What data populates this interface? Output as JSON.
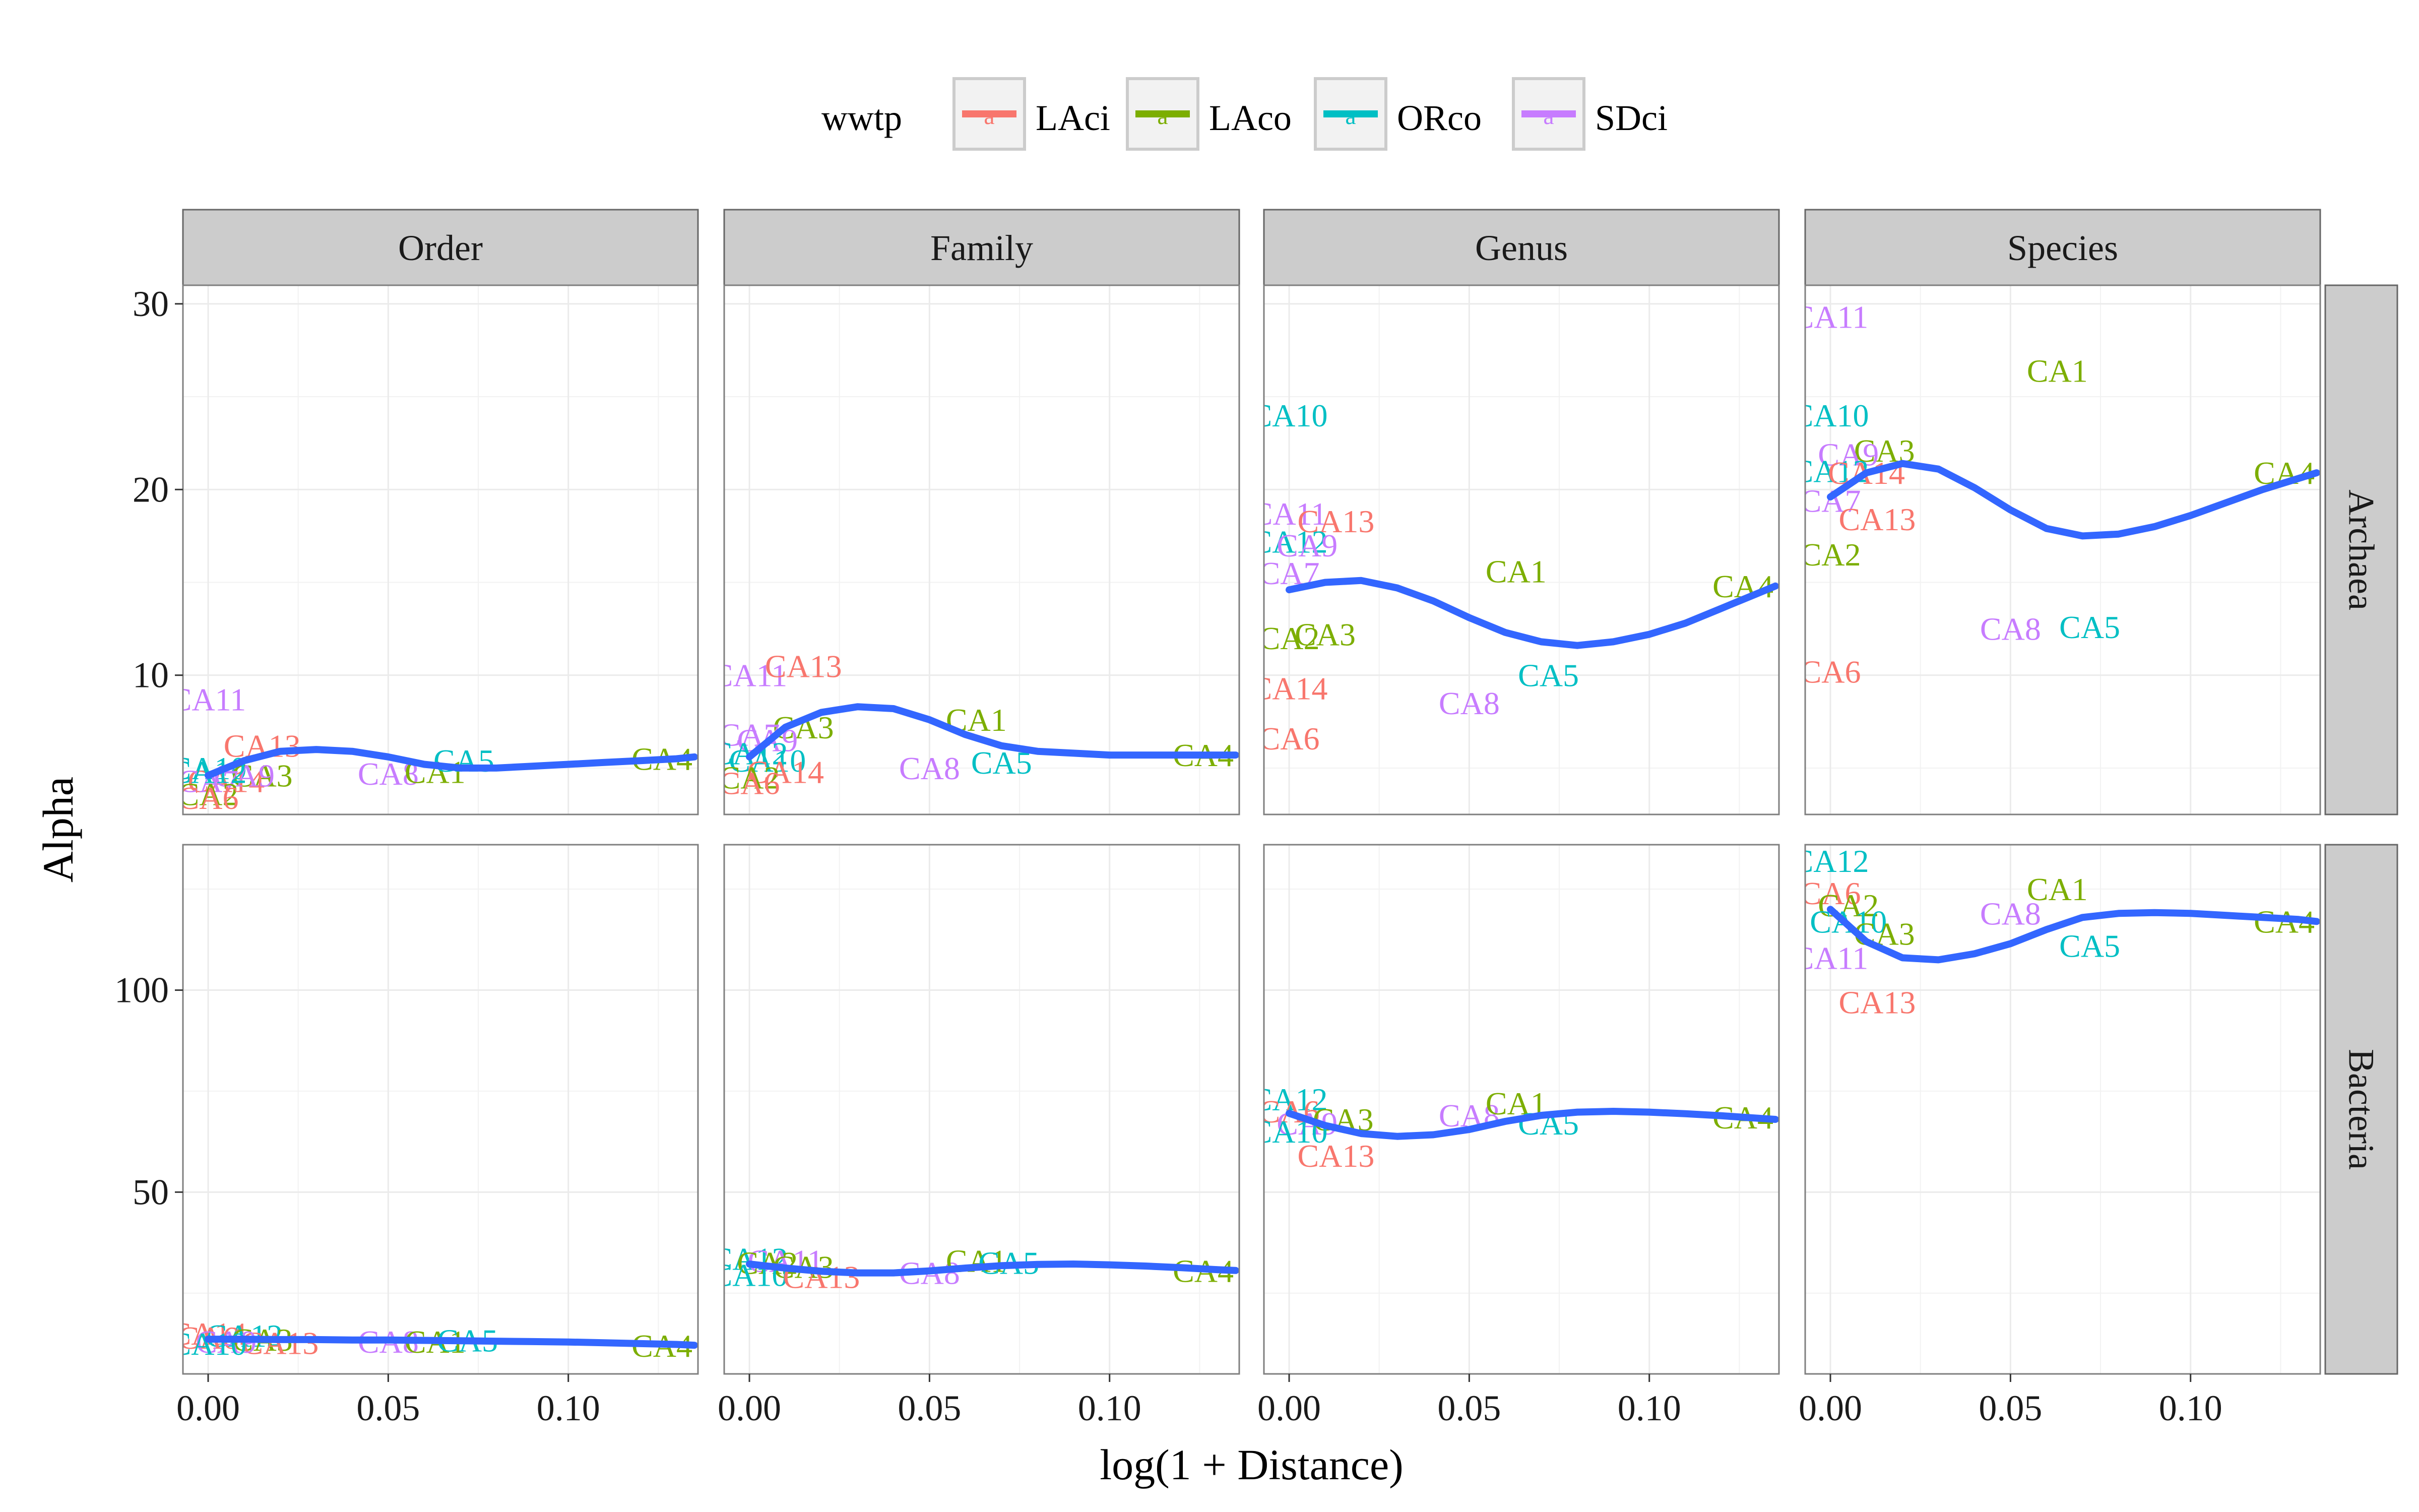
{
  "chart_data": {
    "type": "scatter",
    "xlabel": "log(1 + Distance)",
    "ylabel": "Alpha",
    "legend": {
      "title": "wwtp",
      "position": "top",
      "key_glyph": "a",
      "entries": [
        {
          "name": "LAci",
          "color": "#F8766D"
        },
        {
          "name": "LAco",
          "color": "#7CAE00"
        },
        {
          "name": "ORco",
          "color": "#00BFC4"
        },
        {
          "name": "SDci",
          "color": "#C77CFF"
        }
      ]
    },
    "smooth_color": "#3366FF",
    "grid": true,
    "columns": [
      "Order",
      "Family",
      "Genus",
      "Species"
    ],
    "rows": [
      "Archaea",
      "Bacteria"
    ],
    "xlim": [
      -0.007,
      0.136
    ],
    "x_ticks": [
      0.0,
      0.05,
      0.1
    ],
    "x_tick_labels": [
      "0.00",
      "0.05",
      "0.10"
    ],
    "row_scales": {
      "Archaea": {
        "ylim": [
          2.5,
          31
        ],
        "ticks": [
          10,
          20,
          30
        ],
        "tick_labels": [
          "10",
          "20",
          "30"
        ]
      },
      "Bacteria": {
        "ylim": [
          5,
          136
        ],
        "ticks": [
          50,
          100
        ],
        "tick_labels": [
          "50",
          "100"
        ]
      }
    },
    "panels": [
      {
        "row": "Archaea",
        "col": "Order",
        "points": [
          {
            "label": "CA11",
            "x": 0.0,
            "y": 8.7,
            "group": "SDci"
          },
          {
            "label": "CA13",
            "x": 0.015,
            "y": 6.2,
            "group": "LAci"
          },
          {
            "label": "CA10",
            "x": 0.0,
            "y": 5.0,
            "group": "ORco"
          },
          {
            "label": "CA3",
            "x": 0.015,
            "y": 4.6,
            "group": "LAco"
          },
          {
            "label": "CA14",
            "x": 0.005,
            "y": 4.3,
            "group": "LAci"
          },
          {
            "label": "CA9",
            "x": 0.01,
            "y": 4.6,
            "group": "SDci"
          },
          {
            "label": "CA7",
            "x": 0.0,
            "y": 4.3,
            "group": "SDci"
          },
          {
            "label": "CA12",
            "x": 0.0,
            "y": 4.8,
            "group": "ORco"
          },
          {
            "label": "CA2",
            "x": 0.0,
            "y": 3.6,
            "group": "LAco"
          },
          {
            "label": "CA6",
            "x": 0.0,
            "y": 3.4,
            "group": "LAci"
          },
          {
            "label": "CA8",
            "x": 0.05,
            "y": 4.7,
            "group": "SDci"
          },
          {
            "label": "CA1",
            "x": 0.063,
            "y": 4.8,
            "group": "LAco"
          },
          {
            "label": "CA5",
            "x": 0.071,
            "y": 5.4,
            "group": "ORco"
          },
          {
            "label": "CA4",
            "x": 0.126,
            "y": 5.5,
            "group": "LAco"
          }
        ],
        "smooth": {
          "x": [
            0.0,
            0.01,
            0.02,
            0.03,
            0.04,
            0.05,
            0.06,
            0.07,
            0.08,
            0.09,
            0.1,
            0.11,
            0.12,
            0.13,
            0.135
          ],
          "y": [
            4.6,
            5.4,
            5.9,
            6.0,
            5.9,
            5.6,
            5.2,
            5.0,
            5.0,
            5.1,
            5.2,
            5.3,
            5.4,
            5.5,
            5.6
          ]
        }
      },
      {
        "row": "Archaea",
        "col": "Family",
        "points": [
          {
            "label": "CA11",
            "x": 0.0,
            "y": 10.0,
            "group": "SDci"
          },
          {
            "label": "CA13",
            "x": 0.015,
            "y": 10.5,
            "group": "LAci"
          },
          {
            "label": "CA3",
            "x": 0.015,
            "y": 7.2,
            "group": "LAco"
          },
          {
            "label": "CA7",
            "x": 0.0,
            "y": 6.8,
            "group": "SDci"
          },
          {
            "label": "CA9",
            "x": 0.005,
            "y": 6.5,
            "group": "SDci"
          },
          {
            "label": "CA12",
            "x": 0.0,
            "y": 5.8,
            "group": "ORco"
          },
          {
            "label": "CA10",
            "x": 0.005,
            "y": 5.4,
            "group": "ORco"
          },
          {
            "label": "CA14",
            "x": 0.01,
            "y": 4.8,
            "group": "LAci"
          },
          {
            "label": "CA2",
            "x": 0.0,
            "y": 4.5,
            "group": "LAco"
          },
          {
            "label": "CA6",
            "x": 0.0,
            "y": 4.2,
            "group": "LAci"
          },
          {
            "label": "CA8",
            "x": 0.05,
            "y": 5.0,
            "group": "SDci"
          },
          {
            "label": "CA1",
            "x": 0.063,
            "y": 7.6,
            "group": "LAco"
          },
          {
            "label": "CA5",
            "x": 0.07,
            "y": 5.3,
            "group": "ORco"
          },
          {
            "label": "CA4",
            "x": 0.126,
            "y": 5.7,
            "group": "LAco"
          }
        ],
        "smooth": {
          "x": [
            0.0,
            0.01,
            0.02,
            0.03,
            0.04,
            0.05,
            0.06,
            0.07,
            0.08,
            0.09,
            0.1,
            0.11,
            0.12,
            0.13,
            0.135
          ],
          "y": [
            5.6,
            7.2,
            8.0,
            8.3,
            8.2,
            7.6,
            6.8,
            6.2,
            5.9,
            5.8,
            5.7,
            5.7,
            5.7,
            5.7,
            5.7
          ]
        }
      },
      {
        "row": "Archaea",
        "col": "Genus",
        "points": [
          {
            "label": "CA10",
            "x": 0.0,
            "y": 24.0,
            "group": "ORco"
          },
          {
            "label": "CA11",
            "x": 0.0,
            "y": 18.7,
            "group": "SDci"
          },
          {
            "label": "CA13",
            "x": 0.013,
            "y": 18.3,
            "group": "LAci"
          },
          {
            "label": "CA12",
            "x": 0.0,
            "y": 17.2,
            "group": "ORco"
          },
          {
            "label": "CA9",
            "x": 0.005,
            "y": 17.0,
            "group": "SDci"
          },
          {
            "label": "CA7",
            "x": 0.0,
            "y": 15.5,
            "group": "SDci"
          },
          {
            "label": "CA1",
            "x": 0.063,
            "y": 15.6,
            "group": "LAco"
          },
          {
            "label": "CA4",
            "x": 0.126,
            "y": 14.8,
            "group": "LAco"
          },
          {
            "label": "CA2",
            "x": 0.0,
            "y": 12.0,
            "group": "LAco"
          },
          {
            "label": "CA3",
            "x": 0.01,
            "y": 12.2,
            "group": "LAco"
          },
          {
            "label": "CA5",
            "x": 0.072,
            "y": 10.0,
            "group": "ORco"
          },
          {
            "label": "CA14",
            "x": 0.0,
            "y": 9.3,
            "group": "LAci"
          },
          {
            "label": "CA8",
            "x": 0.05,
            "y": 8.5,
            "group": "SDci"
          },
          {
            "label": "CA6",
            "x": 0.0,
            "y": 6.6,
            "group": "LAci"
          }
        ],
        "smooth": {
          "x": [
            0.0,
            0.01,
            0.02,
            0.03,
            0.04,
            0.05,
            0.06,
            0.07,
            0.08,
            0.09,
            0.1,
            0.11,
            0.12,
            0.13,
            0.135
          ],
          "y": [
            14.6,
            15.0,
            15.1,
            14.7,
            14.0,
            13.1,
            12.3,
            11.8,
            11.6,
            11.8,
            12.2,
            12.8,
            13.6,
            14.4,
            14.8
          ]
        }
      },
      {
        "row": "Archaea",
        "col": "Species",
        "points": [
          {
            "label": "CA11",
            "x": 0.0,
            "y": 29.3,
            "group": "SDci"
          },
          {
            "label": "CA1",
            "x": 0.063,
            "y": 26.4,
            "group": "LAco"
          },
          {
            "label": "CA10",
            "x": 0.0,
            "y": 24.0,
            "group": "ORco"
          },
          {
            "label": "CA3",
            "x": 0.015,
            "y": 22.1,
            "group": "LAco"
          },
          {
            "label": "CA9",
            "x": 0.005,
            "y": 21.9,
            "group": "SDci"
          },
          {
            "label": "CA12",
            "x": 0.0,
            "y": 21.0,
            "group": "ORco"
          },
          {
            "label": "CA14",
            "x": 0.01,
            "y": 20.9,
            "group": "LAci"
          },
          {
            "label": "CA4",
            "x": 0.126,
            "y": 20.9,
            "group": "LAco"
          },
          {
            "label": "CA7",
            "x": 0.0,
            "y": 19.4,
            "group": "SDci"
          },
          {
            "label": "CA13",
            "x": 0.013,
            "y": 18.4,
            "group": "LAci"
          },
          {
            "label": "CA2",
            "x": 0.0,
            "y": 16.5,
            "group": "LAco"
          },
          {
            "label": "CA8",
            "x": 0.05,
            "y": 12.5,
            "group": "SDci"
          },
          {
            "label": "CA5",
            "x": 0.072,
            "y": 12.6,
            "group": "ORco"
          },
          {
            "label": "CA6",
            "x": 0.0,
            "y": 10.2,
            "group": "LAci"
          }
        ],
        "smooth": {
          "x": [
            0.0,
            0.01,
            0.02,
            0.03,
            0.04,
            0.05,
            0.06,
            0.07,
            0.08,
            0.09,
            0.1,
            0.11,
            0.12,
            0.13,
            0.135
          ],
          "y": [
            19.6,
            20.9,
            21.4,
            21.1,
            20.1,
            18.9,
            17.9,
            17.5,
            17.6,
            18.0,
            18.6,
            19.3,
            20.0,
            20.6,
            20.9
          ]
        }
      },
      {
        "row": "Bacteria",
        "col": "Order",
        "points": [
          {
            "label": "CA14",
            "x": 0.0,
            "y": 15.0,
            "group": "LAci"
          },
          {
            "label": "CA12",
            "x": 0.01,
            "y": 14.5,
            "group": "ORco"
          },
          {
            "label": "CA6",
            "x": 0.0,
            "y": 14.0,
            "group": "LAci"
          },
          {
            "label": "CA3",
            "x": 0.015,
            "y": 13.5,
            "group": "LAco"
          },
          {
            "label": "CA13",
            "x": 0.02,
            "y": 12.7,
            "group": "LAci"
          },
          {
            "label": "CA9",
            "x": 0.005,
            "y": 13.0,
            "group": "SDci"
          },
          {
            "label": "CA10",
            "x": 0.0,
            "y": 12.5,
            "group": "ORco"
          },
          {
            "label": "CA8",
            "x": 0.05,
            "y": 13.0,
            "group": "SDci"
          },
          {
            "label": "CA1",
            "x": 0.063,
            "y": 13.0,
            "group": "LAco"
          },
          {
            "label": "CA5",
            "x": 0.072,
            "y": 13.3,
            "group": "ORco"
          },
          {
            "label": "CA4",
            "x": 0.126,
            "y": 12.0,
            "group": "LAco"
          }
        ],
        "smooth": {
          "x": [
            0.0,
            0.01,
            0.02,
            0.03,
            0.04,
            0.05,
            0.06,
            0.07,
            0.08,
            0.09,
            0.1,
            0.11,
            0.12,
            0.13,
            0.135
          ],
          "y": [
            13.6,
            13.6,
            13.5,
            13.5,
            13.4,
            13.4,
            13.3,
            13.2,
            13.1,
            13.0,
            12.9,
            12.7,
            12.5,
            12.3,
            12.1
          ]
        }
      },
      {
        "row": "Bacteria",
        "col": "Family",
        "points": [
          {
            "label": "CA12",
            "x": 0.0,
            "y": 33.5,
            "group": "ORco"
          },
          {
            "label": "CA11",
            "x": 0.01,
            "y": 33.0,
            "group": "SDci"
          },
          {
            "label": "CA2",
            "x": 0.005,
            "y": 32.5,
            "group": "LAco"
          },
          {
            "label": "CA3",
            "x": 0.015,
            "y": 31.5,
            "group": "LAco"
          },
          {
            "label": "CA10",
            "x": 0.0,
            "y": 29.5,
            "group": "ORco"
          },
          {
            "label": "CA13",
            "x": 0.02,
            "y": 29.0,
            "group": "LAci"
          },
          {
            "label": "CA8",
            "x": 0.05,
            "y": 30.0,
            "group": "SDci"
          },
          {
            "label": "CA1",
            "x": 0.063,
            "y": 33.0,
            "group": "LAco"
          },
          {
            "label": "CA5",
            "x": 0.072,
            "y": 32.5,
            "group": "ORco"
          },
          {
            "label": "CA4",
            "x": 0.126,
            "y": 30.5,
            "group": "LAco"
          }
        ],
        "smooth": {
          "x": [
            0.0,
            0.01,
            0.02,
            0.03,
            0.04,
            0.05,
            0.06,
            0.07,
            0.08,
            0.09,
            0.1,
            0.11,
            0.12,
            0.13,
            0.135
          ],
          "y": [
            32.2,
            31.2,
            30.4,
            30.0,
            30.0,
            30.5,
            31.2,
            31.8,
            32.1,
            32.2,
            32.0,
            31.7,
            31.3,
            30.8,
            30.6
          ]
        }
      },
      {
        "row": "Bacteria",
        "col": "Genus",
        "points": [
          {
            "label": "CA12",
            "x": 0.0,
            "y": 73.0,
            "group": "ORco"
          },
          {
            "label": "CA6",
            "x": 0.0,
            "y": 70.0,
            "group": "LAci"
          },
          {
            "label": "CA3",
            "x": 0.015,
            "y": 68.0,
            "group": "LAco"
          },
          {
            "label": "CA9",
            "x": 0.005,
            "y": 67.0,
            "group": "SDci"
          },
          {
            "label": "CA10",
            "x": 0.0,
            "y": 65.0,
            "group": "ORco"
          },
          {
            "label": "CA13",
            "x": 0.013,
            "y": 59.0,
            "group": "LAci"
          },
          {
            "label": "CA8",
            "x": 0.05,
            "y": 69.0,
            "group": "SDci"
          },
          {
            "label": "CA1",
            "x": 0.063,
            "y": 72.0,
            "group": "LAco"
          },
          {
            "label": "CA5",
            "x": 0.072,
            "y": 67.0,
            "group": "ORco"
          },
          {
            "label": "CA4",
            "x": 0.126,
            "y": 68.5,
            "group": "LAco"
          }
        ],
        "smooth": {
          "x": [
            0.0,
            0.01,
            0.02,
            0.03,
            0.04,
            0.05,
            0.06,
            0.07,
            0.08,
            0.09,
            0.1,
            0.11,
            0.12,
            0.13,
            0.135
          ],
          "y": [
            69.5,
            66.5,
            64.5,
            63.8,
            64.2,
            65.5,
            67.5,
            69.0,
            69.8,
            70.0,
            69.8,
            69.4,
            68.9,
            68.3,
            68.0
          ]
        }
      },
      {
        "row": "Bacteria",
        "col": "Species",
        "points": [
          {
            "label": "CA12",
            "x": 0.0,
            "y": 132.0,
            "group": "ORco"
          },
          {
            "label": "CA6",
            "x": 0.0,
            "y": 124.0,
            "group": "LAci"
          },
          {
            "label": "CA2",
            "x": 0.005,
            "y": 121.0,
            "group": "LAco"
          },
          {
            "label": "CA10",
            "x": 0.005,
            "y": 117.0,
            "group": "ORco"
          },
          {
            "label": "CA3",
            "x": 0.015,
            "y": 114.0,
            "group": "LAco"
          },
          {
            "label": "CA11",
            "x": 0.0,
            "y": 108.0,
            "group": "SDci"
          },
          {
            "label": "CA13",
            "x": 0.013,
            "y": 97.0,
            "group": "LAci"
          },
          {
            "label": "CA8",
            "x": 0.05,
            "y": 119.0,
            "group": "SDci"
          },
          {
            "label": "CA1",
            "x": 0.063,
            "y": 125.0,
            "group": "LAco"
          },
          {
            "label": "CA5",
            "x": 0.072,
            "y": 111.0,
            "group": "ORco"
          },
          {
            "label": "CA4",
            "x": 0.126,
            "y": 117.0,
            "group": "LAco"
          }
        ],
        "smooth": {
          "x": [
            0.0,
            0.01,
            0.02,
            0.03,
            0.04,
            0.05,
            0.06,
            0.07,
            0.08,
            0.09,
            0.1,
            0.11,
            0.12,
            0.13,
            0.135
          ],
          "y": [
            120.0,
            112.0,
            108.0,
            107.5,
            109.0,
            111.5,
            115.0,
            118.0,
            119.0,
            119.2,
            119.0,
            118.5,
            118.0,
            117.5,
            117.0
          ]
        }
      }
    ]
  }
}
